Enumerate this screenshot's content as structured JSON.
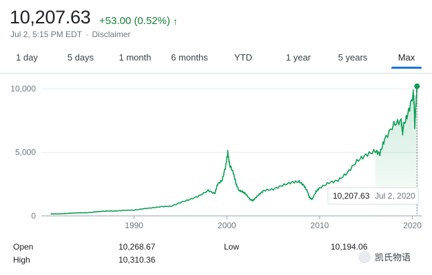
{
  "quote": {
    "price": "10,207.63",
    "change": "+53.00 (0.52%)",
    "timestamp": "Jul 2, 5:15 PM EDT",
    "separator": "·",
    "disclaimer": "Disclaimer"
  },
  "tabs": [
    {
      "label": "1 day",
      "active": false
    },
    {
      "label": "5 days",
      "active": false
    },
    {
      "label": "1 month",
      "active": false
    },
    {
      "label": "6 months",
      "active": false
    },
    {
      "label": "YTD",
      "active": false
    },
    {
      "label": "1 year",
      "active": false
    },
    {
      "label": "5 years",
      "active": false
    },
    {
      "label": "Max",
      "active": true
    }
  ],
  "colors": {
    "up": "#188038",
    "line": "#0f9d58",
    "accent": "#1a73e8"
  },
  "chart_data": {
    "type": "area",
    "yticks": [
      "10,000",
      "5,000",
      "0"
    ],
    "ytick_values": [
      10000,
      5000,
      0
    ],
    "xticks": [
      "1990",
      "2000",
      "2010",
      "2020"
    ],
    "xtick_values": [
      1990,
      2000,
      2010,
      2020
    ],
    "xlim": [
      1980,
      2021
    ],
    "ylim": [
      0,
      10500
    ],
    "grid": true,
    "tooltip": {
      "value": "10,207.63",
      "date": "Jul 2, 2020"
    },
    "series": [
      {
        "x": [
          1981,
          1982,
          1983,
          1984,
          1985,
          1986,
          1987,
          1988,
          1989,
          1990,
          1991,
          1992,
          1993,
          1994,
          1995,
          1996,
          1997,
          1998,
          1998.7,
          1999,
          1999.5,
          1999.9,
          2000.1,
          2000.3,
          2000.7,
          2001,
          2001.3,
          2001.7,
          2002,
          2002.5,
          2002.8,
          2003,
          2003.5,
          2004,
          2005,
          2006,
          2007,
          2007.8,
          2008.3,
          2008.7,
          2008.9,
          2009.2,
          2009.6,
          2010,
          2011,
          2012,
          2013,
          2014,
          2015,
          2016,
          2016.5,
          2017,
          2018,
          2018.8,
          2018.95,
          2019,
          2019.5,
          2020.1,
          2020.2,
          2020.25,
          2020.4,
          2020.5
        ],
        "y": [
          150,
          160,
          200,
          240,
          250,
          330,
          380,
          380,
          440,
          450,
          560,
          640,
          730,
          760,
          1050,
          1290,
          1570,
          2000,
          1750,
          2500,
          2800,
          4000,
          5000,
          4000,
          3400,
          2500,
          2000,
          1900,
          1750,
          1300,
          1200,
          1350,
          1700,
          2000,
          2100,
          2400,
          2650,
          2700,
          2400,
          1900,
          1450,
          1300,
          1900,
          2200,
          2600,
          2800,
          3400,
          4300,
          4800,
          5100,
          4900,
          6000,
          7200,
          7500,
          6500,
          7000,
          8000,
          9600,
          8800,
          7000,
          9000,
          10207.63
        ]
      }
    ]
  },
  "stats": {
    "open_label": "Open",
    "open_value": "10,268.67",
    "high_label": "High",
    "high_value": "10,310.36",
    "low_label": "Low",
    "low_value": "10,194.06"
  },
  "watermark": {
    "text": "凯氏物语"
  }
}
